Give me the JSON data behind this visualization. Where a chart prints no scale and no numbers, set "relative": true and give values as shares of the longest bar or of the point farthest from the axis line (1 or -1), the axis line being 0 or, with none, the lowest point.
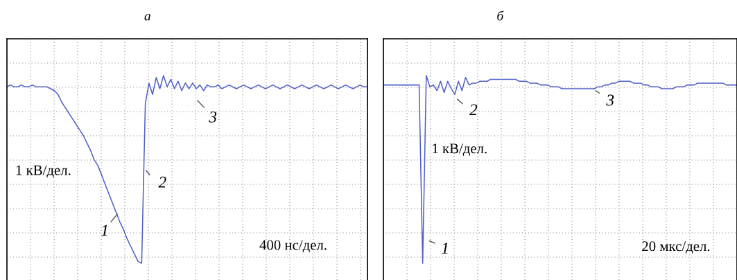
{
  "chart_data": [
    {
      "type": "line",
      "title": "а",
      "relative": true,
      "grid": true,
      "tick_labels": false,
      "color": "#4f5fc6",
      "categories": [
        null,
        null,
        null,
        null,
        null,
        null,
        null,
        null,
        null,
        null,
        null,
        null,
        null,
        null,
        null,
        null,
        null,
        null,
        null,
        null,
        null,
        null,
        null,
        null,
        null,
        null,
        null,
        null,
        null,
        null,
        null,
        null,
        null,
        null,
        null,
        null,
        null,
        null,
        null,
        null,
        null,
        null,
        null,
        null,
        null,
        null,
        null,
        null,
        null,
        null,
        null,
        null,
        null,
        null,
        null,
        null,
        null,
        null,
        null,
        null,
        null,
        null,
        null,
        null,
        null,
        null,
        null,
        null,
        null,
        null,
        null,
        null,
        null,
        null,
        null,
        null,
        null,
        null,
        null,
        null,
        null,
        null,
        null,
        null,
        null,
        null,
        null,
        null,
        null,
        null,
        null,
        null,
        null,
        null,
        null,
        null,
        null,
        null,
        null,
        null
      ],
      "values": [
        0.94,
        0.95,
        0.94,
        0.94,
        0.95,
        0.94,
        0.94,
        0.95,
        0.94,
        0.94,
        0.94,
        0.94,
        0.93,
        0.92,
        0.9,
        0.86,
        0.83,
        0.8,
        0.77,
        0.74,
        0.71,
        0.68,
        0.64,
        0.6,
        0.55,
        0.52,
        0.47,
        0.42,
        0.37,
        0.32,
        0.27,
        0.22,
        0.18,
        0.13,
        0.09,
        0.05,
        0.01,
        0,
        0.85,
        0.96,
        0.9,
        0.99,
        0.93,
        1.0,
        0.94,
        0.98,
        0.93,
        0.97,
        0.92,
        0.96,
        0.93,
        0.96,
        0.93,
        0.95,
        0.92,
        0.95,
        0.94,
        0.94,
        0.95,
        0.93,
        0.94,
        0.95,
        0.94,
        0.93,
        0.94,
        0.95,
        0.94,
        0.93,
        0.94,
        0.95,
        0.94,
        0.93,
        0.94,
        0.95,
        0.94,
        0.93,
        0.94,
        0.95,
        0.94,
        0.93,
        0.94,
        0.95,
        0.94,
        0.93,
        0.94,
        0.95,
        0.94,
        0.93,
        0.94,
        0.95,
        0.94,
        0.93,
        0.94,
        0.95,
        0.94,
        0.93,
        0.94,
        0.95,
        0.94,
        0.94
      ],
      "annotations": [
        "1 кВ/дел.",
        "400 нс/дел.",
        "1",
        "2",
        "3"
      ]
    },
    {
      "type": "line",
      "title": "б",
      "relative": true,
      "grid": true,
      "tick_labels": false,
      "color": "#4f5fc6",
      "categories": [
        null,
        null,
        null,
        null,
        null,
        null,
        null,
        null,
        null,
        null,
        null,
        null,
        null,
        null,
        null,
        null,
        null,
        null,
        null,
        null,
        null,
        null,
        null,
        null,
        null,
        null,
        null,
        null,
        null,
        null,
        null,
        null,
        null,
        null,
        null,
        null,
        null,
        null,
        null,
        null,
        null,
        null,
        null,
        null,
        null,
        null,
        null,
        null,
        null,
        null,
        null,
        null,
        null,
        null,
        null,
        null,
        null,
        null,
        null,
        null,
        null,
        null,
        null,
        null,
        null,
        null,
        null,
        null,
        null,
        null,
        null,
        null,
        null,
        null,
        null,
        null,
        null,
        null,
        null,
        null,
        null,
        null,
        null,
        null,
        null,
        null,
        null,
        null,
        null,
        null,
        null,
        null,
        null,
        null,
        null,
        null,
        null,
        null,
        null,
        null
      ],
      "values": [
        0.95,
        0.95,
        0.95,
        0.95,
        0.95,
        0.95,
        0.95,
        0.95,
        0.95,
        0.95,
        0.95,
        0,
        1.0,
        0.94,
        0.95,
        0.92,
        0.97,
        0.91,
        0.97,
        0.93,
        0.9,
        0.97,
        0.92,
        0.99,
        0.95,
        0.96,
        0.96,
        0.97,
        0.97,
        0.97,
        0.98,
        0.98,
        0.98,
        0.98,
        0.98,
        0.98,
        0.98,
        0.98,
        0.97,
        0.97,
        0.97,
        0.96,
        0.96,
        0.96,
        0.95,
        0.95,
        0.95,
        0.94,
        0.94,
        0.94,
        0.93,
        0.93,
        0.93,
        0.93,
        0.93,
        0.93,
        0.93,
        0.93,
        0.93,
        0.93,
        0.94,
        0.94,
        0.95,
        0.95,
        0.96,
        0.96,
        0.97,
        0.97,
        0.97,
        0.97,
        0.96,
        0.96,
        0.96,
        0.95,
        0.95,
        0.94,
        0.94,
        0.94,
        0.93,
        0.93,
        0.93,
        0.93,
        0.94,
        0.94,
        0.94,
        0.95,
        0.95,
        0.95,
        0.96,
        0.96,
        0.96,
        0.96,
        0.96,
        0.96,
        0.96,
        0.96,
        0.95,
        0.95,
        0.95,
        0.95
      ],
      "annotations": [
        "1 кВ/дел.",
        "20 мкс/дел.",
        "1",
        "2",
        "3"
      ]
    }
  ]
}
